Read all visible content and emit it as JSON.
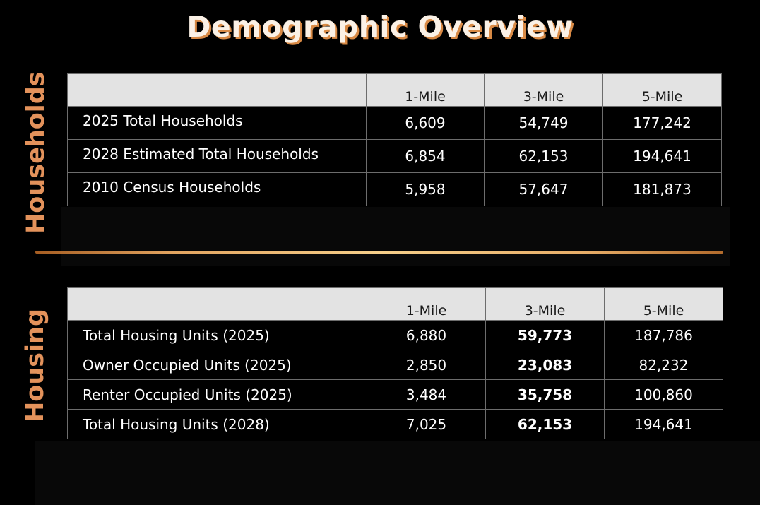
{
  "title": "Demographic Overview",
  "accent_color": "#e3925b",
  "households": {
    "side_label": "Households",
    "columns": [
      "",
      "1-Mile",
      "3-Mile",
      "5-Mile"
    ],
    "rows": [
      {
        "label": "2025 Total Households",
        "values": [
          "6,609",
          "54,749",
          "177,242"
        ]
      },
      {
        "label": "2028 Estimated Total Households",
        "values": [
          "6,854",
          "62,153",
          "194,641"
        ]
      },
      {
        "label": "2010 Census Households",
        "values": [
          "5,958",
          "57,647",
          "181,873"
        ]
      }
    ]
  },
  "housing": {
    "side_label": "Housing",
    "columns": [
      "",
      "1-Mile",
      "3-Mile",
      "5-Mile"
    ],
    "rows": [
      {
        "label": "Total Housing Units (2025)",
        "values": [
          "6,880",
          "59,773",
          "187,786"
        ]
      },
      {
        "label": "Owner Occupied Units (2025)",
        "values": [
          "2,850",
          "23,083",
          "82,232"
        ]
      },
      {
        "label": "Renter Occupied Units (2025)",
        "values": [
          "3,484",
          "35,758",
          "100,860"
        ]
      },
      {
        "label": "Total Housing Units (2028)",
        "values": [
          "7,025",
          "62,153",
          "194,641"
        ]
      }
    ]
  }
}
